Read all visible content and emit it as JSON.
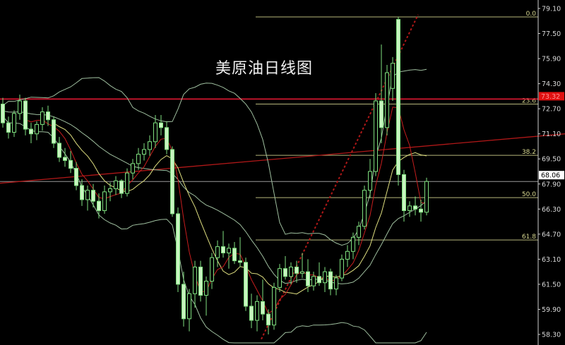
{
  "title": "美原油日线图",
  "chart_data": {
    "type": "candlestick",
    "title": "美原油日线图",
    "y_ticks": [
      "79.10",
      "77.50",
      "75.90",
      "74.30",
      "72.70",
      "71.10",
      "69.50",
      "67.90",
      "66.30",
      "64.70",
      "63.10",
      "61.50",
      "59.90",
      "58.30"
    ],
    "ylim": [
      57.9,
      79.6
    ],
    "last_price": "68.06",
    "marked_price": "73.32",
    "fib_levels": [
      {
        "label": "0.0",
        "price": 78.56
      },
      {
        "label": "23.6",
        "price": 73.0
      },
      {
        "label": "38.2",
        "price": 69.73
      },
      {
        "label": "50.0",
        "price": 67.03
      },
      {
        "label": "61.8",
        "price": 64.33
      }
    ],
    "indicators": [
      "MA5",
      "MA10",
      "Bollinger(20,2)"
    ],
    "colors": {
      "background": "#000000",
      "candle": "#7fe07f",
      "candle_fill": "#c8f5c0",
      "ma5": "#c81e1e",
      "ma10": "#e0e080",
      "bollinger": "#9fbf9f",
      "fib": "#d8d890",
      "resistance": "#c0142a",
      "trend": "#b01818",
      "axis": "#d0d0d0"
    },
    "candles": [
      [
        73.0,
        73.4,
        71.5,
        71.8
      ],
      [
        71.8,
        72.2,
        70.8,
        71.2
      ],
      [
        71.2,
        72.6,
        70.9,
        72.4
      ],
      [
        72.4,
        73.6,
        72.0,
        73.2
      ],
      [
        73.2,
        73.4,
        71.0,
        71.4
      ],
      [
        71.4,
        71.8,
        70.5,
        71.1
      ],
      [
        71.1,
        71.9,
        70.7,
        71.7
      ],
      [
        71.7,
        72.8,
        71.3,
        72.5
      ],
      [
        72.5,
        72.9,
        71.6,
        72.0
      ],
      [
        72.0,
        72.2,
        70.2,
        70.5
      ],
      [
        70.5,
        70.9,
        69.3,
        69.6
      ],
      [
        69.6,
        70.2,
        69.0,
        69.4
      ],
      [
        69.4,
        70.0,
        68.6,
        68.9
      ],
      [
        68.9,
        69.3,
        67.5,
        67.8
      ],
      [
        67.8,
        68.2,
        66.5,
        66.9
      ],
      [
        66.9,
        67.8,
        66.2,
        67.5
      ],
      [
        67.5,
        67.9,
        66.4,
        66.8
      ],
      [
        66.8,
        67.3,
        65.7,
        66.2
      ],
      [
        66.2,
        67.8,
        66.0,
        67.4
      ],
      [
        67.4,
        68.0,
        66.8,
        67.6
      ],
      [
        67.6,
        68.4,
        67.2,
        68.1
      ],
      [
        68.1,
        68.2,
        67.0,
        67.3
      ],
      [
        67.3,
        68.9,
        67.1,
        68.6
      ],
      [
        68.6,
        69.5,
        68.2,
        69.2
      ],
      [
        69.2,
        70.2,
        68.8,
        69.8
      ],
      [
        69.8,
        70.5,
        69.4,
        70.1
      ],
      [
        70.1,
        71.0,
        69.7,
        70.6
      ],
      [
        70.6,
        72.3,
        70.2,
        71.8
      ],
      [
        71.8,
        72.3,
        71.0,
        71.5
      ],
      [
        71.5,
        71.9,
        69.8,
        70.1
      ],
      [
        70.1,
        70.3,
        65.8,
        66.0
      ],
      [
        66.0,
        66.4,
        61.0,
        61.5
      ],
      [
        61.5,
        62.3,
        58.8,
        59.3
      ],
      [
        59.3,
        61.2,
        58.5,
        60.9
      ],
      [
        60.9,
        63.0,
        60.0,
        62.6
      ],
      [
        62.6,
        63.0,
        60.4,
        60.8
      ],
      [
        60.8,
        62.0,
        59.5,
        61.7
      ],
      [
        61.7,
        63.5,
        61.2,
        63.2
      ],
      [
        63.2,
        64.3,
        62.6,
        63.9
      ],
      [
        63.9,
        64.9,
        63.2,
        63.5
      ],
      [
        63.5,
        64.1,
        62.5,
        63.8
      ],
      [
        63.8,
        64.2,
        62.8,
        63.0
      ],
      [
        63.0,
        64.5,
        62.6,
        62.9
      ],
      [
        62.9,
        63.2,
        59.8,
        60.1
      ],
      [
        60.1,
        60.9,
        58.7,
        59.2
      ],
      [
        59.2,
        60.8,
        58.5,
        60.4
      ],
      [
        60.4,
        61.8,
        59.2,
        59.6
      ],
      [
        59.6,
        59.9,
        58.3,
        58.9
      ],
      [
        58.9,
        61.6,
        58.6,
        61.3
      ],
      [
        61.3,
        62.8,
        61.0,
        62.5
      ],
      [
        62.5,
        63.3,
        61.8,
        62.0
      ],
      [
        62.0,
        62.9,
        61.5,
        62.6
      ],
      [
        62.6,
        63.0,
        61.6,
        62.2
      ],
      [
        62.2,
        63.5,
        61.9,
        62.3
      ],
      [
        62.3,
        63.1,
        61.0,
        61.4
      ],
      [
        61.4,
        62.3,
        61.1,
        62.0
      ],
      [
        62.0,
        62.9,
        61.4,
        61.6
      ],
      [
        61.6,
        62.6,
        61.0,
        62.3
      ],
      [
        62.3,
        62.5,
        60.8,
        61.2
      ],
      [
        61.2,
        62.1,
        60.8,
        61.9
      ],
      [
        61.9,
        63.4,
        61.7,
        63.1
      ],
      [
        63.1,
        64.0,
        62.6,
        63.6
      ],
      [
        63.6,
        64.8,
        63.1,
        64.5
      ],
      [
        64.5,
        65.5,
        64.0,
        65.2
      ],
      [
        65.2,
        67.8,
        65.0,
        67.5
      ],
      [
        67.5,
        69.5,
        67.0,
        68.7
      ],
      [
        68.7,
        73.7,
        68.4,
        73.2
      ],
      [
        73.2,
        76.8,
        70.5,
        71.5
      ],
      [
        71.5,
        75.5,
        71.0,
        75.0
      ],
      [
        74.0,
        76.0,
        73.2,
        75.6
      ],
      [
        78.4,
        78.56,
        67.8,
        68.5
      ],
      [
        68.5,
        68.8,
        65.5,
        66.2
      ],
      [
        66.2,
        66.8,
        65.8,
        66.5
      ],
      [
        66.5,
        67.1,
        65.9,
        66.3
      ],
      [
        66.3,
        66.9,
        65.5,
        66.1
      ],
      [
        66.1,
        68.3,
        65.9,
        68.06
      ]
    ],
    "trend_line": {
      "start_price": 67.95,
      "end_price": 71.1
    },
    "dotted_trend_line": {
      "start_price": 58.0,
      "end_price": 78.7
    }
  }
}
